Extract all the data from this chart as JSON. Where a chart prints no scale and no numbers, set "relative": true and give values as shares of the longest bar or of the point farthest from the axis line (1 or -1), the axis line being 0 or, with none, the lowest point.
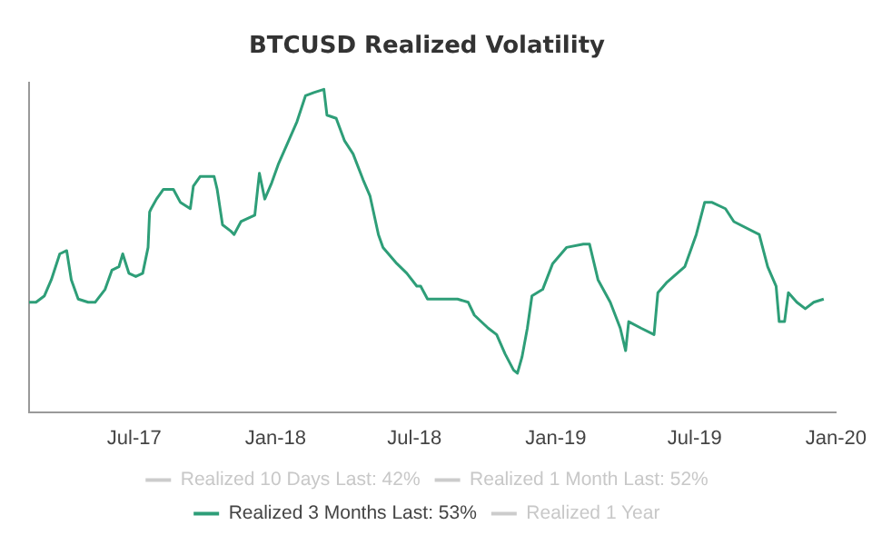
{
  "chart_data": {
    "type": "line",
    "title": "BTCUSD Realized Volatility",
    "relative": true,
    "legend": "bottom",
    "marker": "none",
    "line_style": "solid",
    "xlim": [
      "2017-02-14",
      "2020-01-01"
    ],
    "xticks": [
      {
        "value": "2017-07-01",
        "label": "Jul-17"
      },
      {
        "value": "2018-01-01",
        "label": "Jan-18"
      },
      {
        "value": "2018-07-01",
        "label": "Jul-18"
      },
      {
        "value": "2019-01-01",
        "label": "Jan-19"
      },
      {
        "value": "2019-07-01",
        "label": "Jul-19"
      },
      {
        "value": "2020-01-01",
        "label": "Jan-20"
      }
    ],
    "x": [
      "2017-02-14",
      "2017-02-23",
      "2017-03-06",
      "2017-03-15",
      "2017-03-26",
      "2017-04-04",
      "2017-04-10",
      "2017-04-19",
      "2017-05-02",
      "2017-05-11",
      "2017-05-24",
      "2017-06-02",
      "2017-06-11",
      "2017-06-16",
      "2017-06-24",
      "2017-07-03",
      "2017-07-12",
      "2017-07-19",
      "2017-07-21",
      "2017-07-23",
      "2017-07-30",
      "2017-08-08",
      "2017-08-21",
      "2017-08-30",
      "2017-09-12",
      "2017-09-16",
      "2017-09-25",
      "2017-10-13",
      "2017-10-17",
      "2017-10-24",
      "2017-11-04",
      "2017-11-08",
      "2017-11-17",
      "2017-11-26",
      "2017-12-05",
      "2017-12-11",
      "2017-12-18",
      "2017-12-27",
      "2018-01-05",
      "2018-01-18",
      "2018-01-29",
      "2018-02-09",
      "2018-02-20",
      "2018-03-05",
      "2018-03-09",
      "2018-03-21",
      "2018-04-01",
      "2018-04-12",
      "2018-04-25",
      "2018-05-04",
      "2018-05-15",
      "2018-05-21",
      "2018-06-08",
      "2018-06-21",
      "2018-07-04",
      "2018-07-09",
      "2018-07-18",
      "2018-07-31",
      "2018-08-13",
      "2018-08-26",
      "2018-09-09",
      "2018-09-17",
      "2018-10-05",
      "2018-10-16",
      "2018-10-27",
      "2018-11-07",
      "2018-11-12",
      "2018-11-18",
      "2018-11-25",
      "2018-12-01",
      "2018-12-15",
      "2018-12-28",
      "2019-01-15",
      "2019-02-06",
      "2019-02-14",
      "2019-02-25",
      "2019-03-13",
      "2019-03-26",
      "2019-04-02",
      "2019-04-06",
      "2019-04-22",
      "2019-05-09",
      "2019-05-14",
      "2019-05-25",
      "2019-06-18",
      "2019-06-27",
      "2019-07-03",
      "2019-07-14",
      "2019-07-23",
      "2019-08-10",
      "2019-08-21",
      "2019-09-23",
      "2019-10-04",
      "2019-10-15",
      "2019-10-19",
      "2019-10-26",
      "2019-10-31",
      "2019-11-11",
      "2019-11-22",
      "2019-12-03",
      "2019-12-16"
    ],
    "series": [
      {
        "name": "Realized 10 Days Last: 42%",
        "color": "#cccccc",
        "values": [
          null,
          null,
          null,
          null,
          null,
          null,
          null,
          null,
          null,
          null,
          null,
          null,
          null,
          null,
          null,
          null,
          null,
          null,
          null,
          null,
          null,
          null,
          null,
          null,
          null,
          null,
          null,
          null,
          null,
          null,
          null,
          null,
          null,
          null,
          null,
          null,
          null,
          null,
          null,
          null,
          null,
          null,
          null,
          null,
          null,
          null,
          null,
          null,
          null,
          null,
          null,
          null,
          null,
          null,
          null,
          null,
          null,
          null,
          null,
          null,
          null,
          null,
          null,
          null,
          null,
          null,
          null,
          null,
          null,
          null,
          null,
          null,
          null,
          null,
          null,
          null,
          null,
          null,
          null,
          null,
          null,
          null,
          null,
          null,
          null,
          null,
          null,
          null,
          null,
          null,
          null,
          null,
          null,
          null,
          null,
          null,
          null,
          null,
          null,
          null,
          null
        ]
      },
      {
        "name": "Realized 1 Month Last: 52%",
        "color": "#cccccc",
        "values": [
          null,
          null,
          null,
          null,
          null,
          null,
          null,
          null,
          null,
          null,
          null,
          null,
          null,
          null,
          null,
          null,
          null,
          null,
          null,
          null,
          null,
          null,
          null,
          null,
          null,
          null,
          null,
          null,
          null,
          null,
          null,
          null,
          null,
          null,
          null,
          null,
          null,
          null,
          null,
          null,
          null,
          null,
          null,
          null,
          null,
          null,
          null,
          null,
          null,
          null,
          null,
          null,
          null,
          null,
          null,
          null,
          null,
          null,
          null,
          null,
          null,
          null,
          null,
          null,
          null,
          null,
          null,
          null,
          null,
          null,
          null,
          null,
          null,
          null,
          null,
          null,
          null,
          null,
          null,
          null,
          null,
          null,
          null,
          null,
          null,
          null,
          null,
          null,
          null,
          null,
          null,
          null,
          null,
          null,
          null,
          null,
          null,
          null,
          null,
          null,
          null
        ]
      },
      {
        "name": "Realized 3 Months Last: 53%",
        "color": "#2e9e78",
        "values": [
          0.34,
          0.34,
          0.36,
          0.41,
          0.49,
          0.5,
          0.41,
          0.35,
          0.34,
          0.34,
          0.38,
          0.44,
          0.45,
          0.49,
          0.43,
          0.42,
          0.43,
          0.51,
          0.62,
          0.63,
          0.66,
          0.69,
          0.69,
          0.65,
          0.63,
          0.7,
          0.73,
          0.73,
          0.69,
          0.58,
          0.56,
          0.55,
          0.59,
          0.6,
          0.61,
          0.74,
          0.66,
          0.71,
          0.77,
          0.84,
          0.9,
          0.98,
          0.99,
          1,
          0.92,
          0.91,
          0.84,
          0.8,
          0.72,
          0.67,
          0.55,
          0.51,
          0.46,
          0.43,
          0.39,
          0.39,
          0.35,
          0.35,
          0.35,
          0.35,
          0.34,
          0.3,
          0.26,
          0.24,
          0.18,
          0.13,
          0.12,
          0.17,
          0.26,
          0.36,
          0.38,
          0.46,
          0.51,
          0.52,
          0.52,
          0.41,
          0.34,
          0.26,
          0.19,
          0.28,
          0.26,
          0.24,
          0.37,
          0.4,
          0.45,
          0.51,
          0.55,
          0.65,
          0.65,
          0.63,
          0.59,
          0.55,
          0.45,
          0.39,
          0.28,
          0.28,
          0.37,
          0.34,
          0.32,
          0.34,
          0.35
        ]
      },
      {
        "name": "Realized 1 Year",
        "color": "#cccccc",
        "values": [
          null,
          null,
          null,
          null,
          null,
          null,
          null,
          null,
          null,
          null,
          null,
          null,
          null,
          null,
          null,
          null,
          null,
          null,
          null,
          null,
          null,
          null,
          null,
          null,
          null,
          null,
          null,
          null,
          null,
          null,
          null,
          null,
          null,
          null,
          null,
          null,
          null,
          null,
          null,
          null,
          null,
          null,
          null,
          null,
          null,
          null,
          null,
          null,
          null,
          null,
          null,
          null,
          null,
          null,
          null,
          null,
          null,
          null,
          null,
          null,
          null,
          null,
          null,
          null,
          null,
          null,
          null,
          null,
          null,
          null,
          null,
          null,
          null,
          null,
          null,
          null,
          null,
          null,
          null,
          null,
          null,
          null,
          null,
          null,
          null,
          null,
          null,
          null,
          null,
          null,
          null,
          null,
          null,
          null,
          null,
          null,
          null,
          null,
          null,
          null,
          null
        ]
      }
    ]
  }
}
